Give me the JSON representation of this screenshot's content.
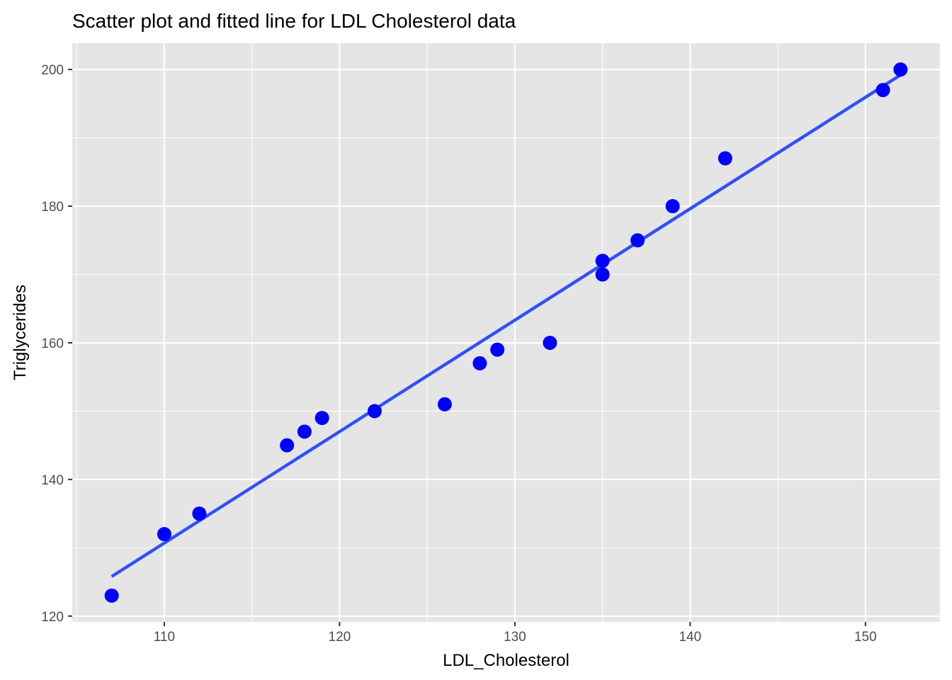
{
  "chart_data": {
    "type": "scatter",
    "title": "Scatter plot and fitted line for LDL Cholesterol data",
    "xlabel": "LDL_Cholesterol",
    "ylabel": "Triglycerides",
    "xlim": [
      104.75,
      154.25
    ],
    "ylim": [
      119.15,
      203.85
    ],
    "x_ticks": [
      110,
      120,
      130,
      140,
      150
    ],
    "y_ticks": [
      120,
      140,
      160,
      180,
      200
    ],
    "grid": true,
    "legend": "none",
    "series": [
      {
        "points": [
          {
            "x": 107,
            "y": 123
          },
          {
            "x": 110,
            "y": 132
          },
          {
            "x": 112,
            "y": 135
          },
          {
            "x": 117,
            "y": 145
          },
          {
            "x": 118,
            "y": 147
          },
          {
            "x": 119,
            "y": 149
          },
          {
            "x": 122,
            "y": 150
          },
          {
            "x": 126,
            "y": 151
          },
          {
            "x": 128,
            "y": 157
          },
          {
            "x": 129,
            "y": 159
          },
          {
            "x": 132,
            "y": 160
          },
          {
            "x": 135,
            "y": 172
          },
          {
            "x": 135,
            "y": 170
          },
          {
            "x": 137,
            "y": 175
          },
          {
            "x": 139,
            "y": 180
          },
          {
            "x": 142,
            "y": 187
          },
          {
            "x": 151,
            "y": 197
          },
          {
            "x": 152,
            "y": 200
          }
        ]
      }
    ],
    "fitted_line": {
      "x": [
        107,
        152
      ],
      "y": [
        125.8,
        199.2
      ]
    },
    "colors": {
      "points": "#0000ff",
      "line": "#3050f8",
      "panel": "#e5e5e5",
      "grid": "#ffffff"
    }
  }
}
